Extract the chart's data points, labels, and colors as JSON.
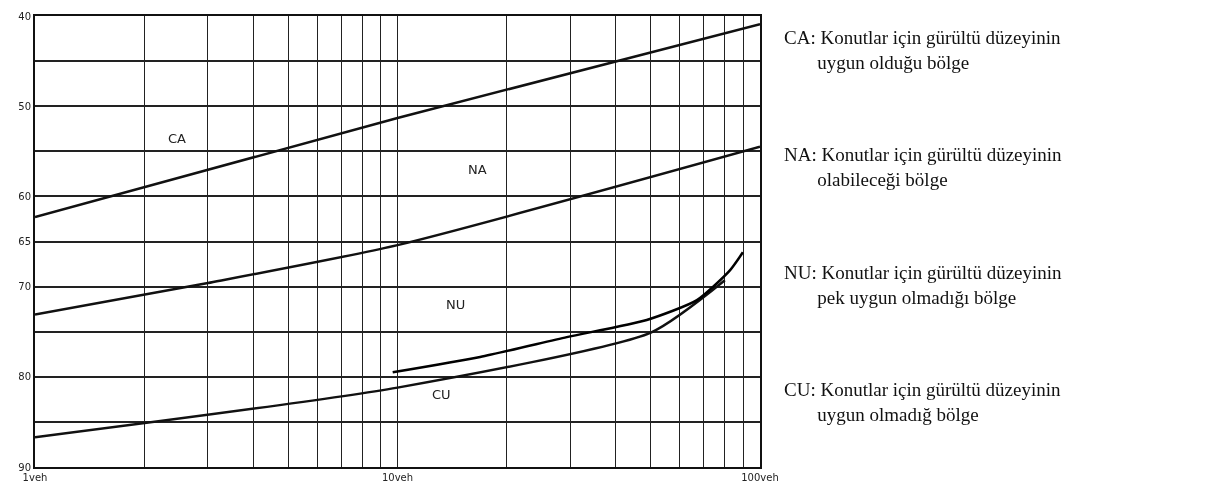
{
  "chart_data": {
    "type": "line",
    "log": "x",
    "grid": true,
    "marker": "none",
    "line_style": "solid",
    "xlim": [
      1,
      100
    ],
    "xticks": [
      {
        "value": 1,
        "label": "1veh"
      },
      {
        "value": 2,
        "label": null
      },
      {
        "value": 3,
        "label": null
      },
      {
        "value": 4,
        "label": null
      },
      {
        "value": 5,
        "label": null
      },
      {
        "value": 6,
        "label": null
      },
      {
        "value": 7,
        "label": null
      },
      {
        "value": 8,
        "label": null
      },
      {
        "value": 9,
        "label": null
      },
      {
        "value": 10,
        "label": "10veh"
      },
      {
        "value": 20,
        "label": null
      },
      {
        "value": 30,
        "label": null
      },
      {
        "value": 40,
        "label": null
      },
      {
        "value": 50,
        "label": null
      },
      {
        "value": 60,
        "label": null
      },
      {
        "value": 70,
        "label": null
      },
      {
        "value": 80,
        "label": null
      },
      {
        "value": 90,
        "label": null
      },
      {
        "value": 100,
        "label": "100veh"
      }
    ],
    "ylim": [
      90,
      40
    ],
    "yticks": [
      40,
      {
        "value": 45,
        "label": null
      },
      50,
      {
        "value": 55,
        "label": null
      },
      60,
      65,
      70,
      {
        "value": 75,
        "label": null
      },
      80,
      {
        "value": 85,
        "label": null
      },
      90
    ],
    "series": [
      {
        "color": "#111111",
        "x": [
          1,
          10,
          100
        ],
        "values": [
          62.3,
          51.3,
          40.9
        ]
      },
      {
        "color": "#111111",
        "x": [
          1,
          3,
          10,
          100
        ],
        "values": [
          73.1,
          69.6,
          65.4,
          54.5
        ]
      },
      {
        "color": "#111111",
        "x": [
          1,
          10,
          50,
          80
        ],
        "values": [
          86.7,
          81.2,
          75.1,
          69.3
        ]
      },
      {
        "color": "#000000",
        "x": [
          9.7,
          16.9,
          29.3,
          48.7,
          67,
          82.6,
          89.7
        ],
        "values": [
          79.5,
          77.8,
          75.6,
          73.7,
          71.5,
          68.2,
          66.2
        ]
      }
    ],
    "annotations": [
      "CA",
      "NA",
      "NU",
      "CU",
      "CA: Konutlar için gürültü düzeyinin\nuygun olduğu bölge",
      "NA: Konutlar için gürültü düzeyinin\nolabileceği bölge",
      "NU: Konutlar için gürültü düzeyinin\npek uygun olmadığı bölge",
      "CU: Konutlar için gürültü düzeyinin\nuygun olmadığ bölge"
    ]
  }
}
